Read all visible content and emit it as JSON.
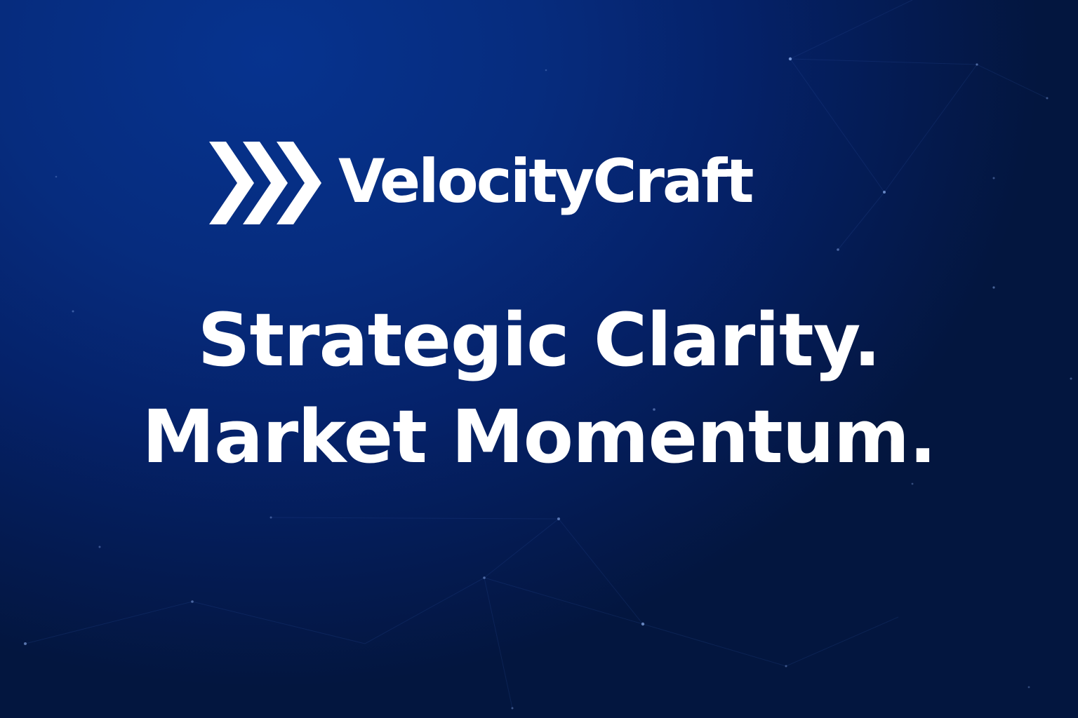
{
  "brand": {
    "name": "VelocityCraft",
    "logo_icon": "triple-chevron-icon"
  },
  "headline": {
    "line1": "Strategic Clarity.",
    "line2": "Market Momentum."
  },
  "colors": {
    "background_light": "#06338f",
    "background_dark": "#03163f",
    "text": "#ffffff",
    "network_lines": "#3a5fb0"
  }
}
